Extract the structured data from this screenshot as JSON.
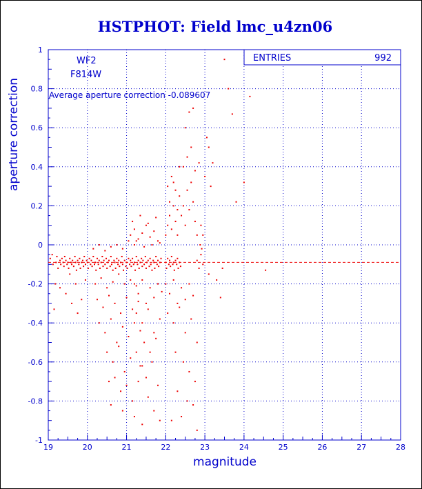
{
  "chart_data": {
    "type": "scatter",
    "title": "HSTPHOT: Field lmc_u4zn06",
    "xlabel": "magnitude",
    "ylabel": "aperture correction",
    "xlim": [
      19,
      28
    ],
    "ylim": [
      -1,
      1
    ],
    "x_ticks": [
      19,
      20,
      21,
      22,
      23,
      24,
      25,
      26,
      27,
      28
    ],
    "y_ticks": [
      -1,
      -0.8,
      -0.6,
      -0.4,
      -0.2,
      0,
      0.2,
      0.4,
      0.6,
      0.8,
      1
    ],
    "y_tick_labels": [
      "-1",
      "-0.8",
      "-0.6",
      "-0.4",
      "-0.2",
      "0",
      "0.2",
      "0.4",
      "0.6",
      "0.8",
      "1"
    ],
    "grid": true,
    "point_color": "#ee0000",
    "axis_color": "#0000cc",
    "chip": "WF2",
    "filter": "F814W",
    "average_label": "Average aperture correction",
    "average_value": -0.089607,
    "average_text": "Average aperture correction -0.089607",
    "entries_label": "ENTRIES",
    "entries_value": "992",
    "points": [
      [
        19.05,
        -0.07
      ],
      [
        19.1,
        -0.05
      ],
      [
        19.12,
        -0.1
      ],
      [
        19.15,
        -0.33
      ],
      [
        19.18,
        -0.2
      ],
      [
        19.2,
        -0.09
      ],
      [
        19.22,
        -0.06
      ],
      [
        19.25,
        -0.12
      ],
      [
        19.3,
        -0.08
      ],
      [
        19.32,
        -0.1
      ],
      [
        19.35,
        -0.07
      ],
      [
        19.38,
        -0.09
      ],
      [
        19.4,
        -0.11
      ],
      [
        19.42,
        -0.06
      ],
      [
        19.45,
        -0.08
      ],
      [
        19.48,
        -0.1
      ],
      [
        19.5,
        -0.09
      ],
      [
        19.52,
        -0.12
      ],
      [
        19.55,
        -0.07
      ],
      [
        19.58,
        -0.09
      ],
      [
        19.6,
        -0.1
      ],
      [
        19.62,
        -0.08
      ],
      [
        19.65,
        -0.11
      ],
      [
        19.68,
        -0.06
      ],
      [
        19.7,
        -0.09
      ],
      [
        19.72,
        -0.13
      ],
      [
        19.75,
        -0.08
      ],
      [
        19.78,
        -0.1
      ],
      [
        19.8,
        -0.07
      ],
      [
        19.82,
        -0.12
      ],
      [
        19.85,
        -0.09
      ],
      [
        19.88,
        -0.08
      ],
      [
        19.9,
        -0.11
      ],
      [
        19.92,
        -0.06
      ],
      [
        19.95,
        -0.1
      ],
      [
        19.98,
        -0.08
      ],
      [
        20.0,
        -0.09
      ],
      [
        20.02,
        -0.12
      ],
      [
        20.05,
        -0.07
      ],
      [
        20.08,
        -0.1
      ],
      [
        19.55,
        -0.15
      ],
      [
        19.7,
        -0.2
      ],
      [
        19.85,
        -0.28
      ],
      [
        19.95,
        -0.18
      ],
      [
        19.6,
        -0.3
      ],
      [
        19.75,
        -0.35
      ],
      [
        19.45,
        -0.25
      ],
      [
        19.3,
        -0.22
      ],
      [
        20.1,
        -0.08
      ],
      [
        20.12,
        -0.11
      ],
      [
        20.15,
        -0.06
      ],
      [
        20.18,
        -0.1
      ],
      [
        20.2,
        -0.09
      ],
      [
        20.22,
        -0.13
      ],
      [
        20.25,
        -0.07
      ],
      [
        20.28,
        -0.1
      ],
      [
        20.3,
        -0.08
      ],
      [
        20.32,
        -0.12
      ],
      [
        20.35,
        -0.09
      ],
      [
        20.38,
        -0.06
      ],
      [
        20.4,
        -0.11
      ],
      [
        20.42,
        -0.08
      ],
      [
        20.45,
        -0.1
      ],
      [
        20.48,
        -0.07
      ],
      [
        20.5,
        -0.12
      ],
      [
        20.52,
        -0.09
      ],
      [
        20.55,
        -0.08
      ],
      [
        20.58,
        -0.11
      ],
      [
        20.6,
        -0.06
      ],
      [
        20.62,
        -0.1
      ],
      [
        20.65,
        -0.13
      ],
      [
        20.68,
        -0.08
      ],
      [
        20.7,
        -0.09
      ],
      [
        20.72,
        -0.12
      ],
      [
        20.75,
        -0.07
      ],
      [
        20.78,
        -0.1
      ],
      [
        20.8,
        -0.08
      ],
      [
        20.82,
        -0.11
      ],
      [
        20.85,
        -0.09
      ],
      [
        20.88,
        -0.06
      ],
      [
        20.9,
        -0.1
      ],
      [
        20.92,
        -0.13
      ],
      [
        20.95,
        -0.08
      ],
      [
        20.98,
        -0.11
      ],
      [
        21.0,
        -0.09
      ],
      [
        21.02,
        -0.12
      ],
      [
        21.05,
        -0.07
      ],
      [
        21.08,
        -0.1
      ],
      [
        20.15,
        -0.02
      ],
      [
        20.3,
        0.0
      ],
      [
        20.45,
        -0.03
      ],
      [
        20.6,
        -0.01
      ],
      [
        20.75,
        0.0
      ],
      [
        20.9,
        -0.02
      ],
      [
        21.05,
        0.02
      ],
      [
        21.2,
        0.0
      ],
      [
        20.2,
        -0.2
      ],
      [
        20.35,
        -0.17
      ],
      [
        20.5,
        -0.22
      ],
      [
        20.65,
        -0.19
      ],
      [
        20.8,
        -0.15
      ],
      [
        20.95,
        -0.2
      ],
      [
        21.1,
        -0.18
      ],
      [
        21.25,
        -0.21
      ],
      [
        20.25,
        -0.28
      ],
      [
        20.4,
        -0.32
      ],
      [
        20.55,
        -0.26
      ],
      [
        20.7,
        -0.3
      ],
      [
        20.85,
        -0.35
      ],
      [
        21.0,
        -0.27
      ],
      [
        21.15,
        -0.33
      ],
      [
        21.3,
        -0.29
      ],
      [
        20.3,
        -0.4
      ],
      [
        20.45,
        -0.45
      ],
      [
        20.6,
        -0.38
      ],
      [
        20.75,
        -0.5
      ],
      [
        20.9,
        -0.42
      ],
      [
        21.05,
        -0.47
      ],
      [
        21.2,
        -0.4
      ],
      [
        21.35,
        -0.44
      ],
      [
        20.5,
        -0.55
      ],
      [
        20.65,
        -0.6
      ],
      [
        20.8,
        -0.52
      ],
      [
        20.95,
        -0.65
      ],
      [
        21.1,
        -0.58
      ],
      [
        21.25,
        -0.55
      ],
      [
        21.4,
        -0.62
      ],
      [
        20.55,
        -0.7
      ],
      [
        20.7,
        -0.68
      ],
      [
        20.85,
        -0.75
      ],
      [
        21.0,
        -0.72
      ],
      [
        21.15,
        -0.8
      ],
      [
        21.3,
        -0.7
      ],
      [
        20.9,
        -0.85
      ],
      [
        21.2,
        -0.88
      ],
      [
        20.6,
        -0.82
      ],
      [
        21.1,
        -0.08
      ],
      [
        21.12,
        -0.11
      ],
      [
        21.15,
        -0.07
      ],
      [
        21.18,
        -0.1
      ],
      [
        21.2,
        -0.09
      ],
      [
        21.22,
        -0.13
      ],
      [
        21.25,
        -0.06
      ],
      [
        21.28,
        -0.1
      ],
      [
        21.3,
        -0.08
      ],
      [
        21.32,
        -0.12
      ],
      [
        21.35,
        -0.09
      ],
      [
        21.38,
        -0.07
      ],
      [
        21.4,
        -0.11
      ],
      [
        21.42,
        -0.08
      ],
      [
        21.45,
        -0.1
      ],
      [
        21.48,
        -0.06
      ],
      [
        21.5,
        -0.12
      ],
      [
        21.52,
        -0.09
      ],
      [
        21.55,
        -0.08
      ],
      [
        21.58,
        -0.11
      ],
      [
        21.6,
        -0.07
      ],
      [
        21.62,
        -0.1
      ],
      [
        21.65,
        -0.13
      ],
      [
        21.68,
        -0.08
      ],
      [
        21.7,
        -0.09
      ],
      [
        21.72,
        -0.12
      ],
      [
        21.75,
        -0.06
      ],
      [
        21.78,
        -0.1
      ],
      [
        21.8,
        -0.08
      ],
      [
        21.82,
        -0.11
      ],
      [
        21.85,
        -0.09
      ],
      [
        21.88,
        -0.07
      ],
      [
        21.1,
        0.05
      ],
      [
        21.2,
        0.08
      ],
      [
        21.3,
        0.03
      ],
      [
        21.4,
        0.06
      ],
      [
        21.5,
        0.1
      ],
      [
        21.6,
        0.04
      ],
      [
        21.7,
        0.07
      ],
      [
        21.8,
        0.02
      ],
      [
        21.15,
        0.12
      ],
      [
        21.35,
        0.15
      ],
      [
        21.55,
        0.11
      ],
      [
        21.75,
        0.14
      ],
      [
        21.25,
        0.02
      ],
      [
        21.45,
        -0.01
      ],
      [
        21.65,
        0.0
      ],
      [
        21.85,
        0.01
      ],
      [
        21.2,
        -0.2
      ],
      [
        21.3,
        -0.25
      ],
      [
        21.4,
        -0.18
      ],
      [
        21.5,
        -0.3
      ],
      [
        21.6,
        -0.22
      ],
      [
        21.7,
        -0.27
      ],
      [
        21.8,
        -0.2
      ],
      [
        21.9,
        -0.24
      ],
      [
        21.25,
        -0.35
      ],
      [
        21.4,
        -0.4
      ],
      [
        21.55,
        -0.33
      ],
      [
        21.7,
        -0.45
      ],
      [
        21.85,
        -0.38
      ],
      [
        21.45,
        -0.5
      ],
      [
        21.6,
        -0.55
      ],
      [
        21.75,
        -0.48
      ],
      [
        21.35,
        -0.62
      ],
      [
        21.5,
        -0.68
      ],
      [
        21.65,
        -0.6
      ],
      [
        21.8,
        -0.72
      ],
      [
        21.55,
        -0.78
      ],
      [
        21.7,
        -0.85
      ],
      [
        21.4,
        -0.92
      ],
      [
        21.85,
        -0.9
      ],
      [
        22.0,
        -0.09
      ],
      [
        22.02,
        -0.12
      ],
      [
        22.05,
        -0.07
      ],
      [
        22.08,
        -0.1
      ],
      [
        22.1,
        -0.08
      ],
      [
        22.12,
        -0.11
      ],
      [
        22.15,
        -0.06
      ],
      [
        22.18,
        -0.1
      ],
      [
        22.2,
        -0.09
      ],
      [
        22.22,
        -0.13
      ],
      [
        22.25,
        -0.08
      ],
      [
        22.28,
        -0.1
      ],
      [
        22.3,
        -0.07
      ],
      [
        22.32,
        -0.12
      ],
      [
        22.35,
        -0.09
      ],
      [
        22.38,
        -0.11
      ],
      [
        22.0,
        0.05
      ],
      [
        22.05,
        0.1
      ],
      [
        22.1,
        0.15
      ],
      [
        22.15,
        0.08
      ],
      [
        22.2,
        0.2
      ],
      [
        22.25,
        0.12
      ],
      [
        22.3,
        0.18
      ],
      [
        22.35,
        0.25
      ],
      [
        22.05,
        0.3
      ],
      [
        22.15,
        0.35
      ],
      [
        22.25,
        0.28
      ],
      [
        22.35,
        0.4
      ],
      [
        22.1,
        0.22
      ],
      [
        22.2,
        0.32
      ],
      [
        22.3,
        0.05
      ],
      [
        22.4,
        0.15
      ],
      [
        22.45,
        0.2
      ],
      [
        22.5,
        0.1
      ],
      [
        22.55,
        0.28
      ],
      [
        22.6,
        0.18
      ],
      [
        22.65,
        0.32
      ],
      [
        22.7,
        0.22
      ],
      [
        22.75,
        0.12
      ],
      [
        22.8,
        0.05
      ],
      [
        22.45,
        0.4
      ],
      [
        22.55,
        0.45
      ],
      [
        22.65,
        0.5
      ],
      [
        22.75,
        0.38
      ],
      [
        22.85,
        0.42
      ],
      [
        22.5,
        0.6
      ],
      [
        22.6,
        0.68
      ],
      [
        22.7,
        0.7
      ],
      [
        22.0,
        -0.2
      ],
      [
        22.1,
        -0.25
      ],
      [
        22.2,
        -0.18
      ],
      [
        22.3,
        -0.3
      ],
      [
        22.4,
        -0.22
      ],
      [
        22.5,
        -0.28
      ],
      [
        22.6,
        -0.2
      ],
      [
        22.7,
        -0.26
      ],
      [
        22.05,
        -0.35
      ],
      [
        22.2,
        -0.4
      ],
      [
        22.35,
        -0.32
      ],
      [
        22.5,
        -0.45
      ],
      [
        22.65,
        -0.38
      ],
      [
        22.8,
        -0.5
      ],
      [
        22.25,
        -0.55
      ],
      [
        22.45,
        -0.6
      ],
      [
        22.6,
        -0.65
      ],
      [
        22.75,
        -0.7
      ],
      [
        22.3,
        -0.75
      ],
      [
        22.55,
        -0.8
      ],
      [
        22.7,
        -0.82
      ],
      [
        22.4,
        -0.88
      ],
      [
        22.8,
        -0.95
      ],
      [
        22.15,
        -0.9
      ],
      [
        22.8,
        -0.08
      ],
      [
        22.85,
        -0.12
      ],
      [
        22.9,
        -0.05
      ],
      [
        22.95,
        -0.1
      ],
      [
        22.88,
        0.0
      ],
      [
        22.92,
        -0.02
      ],
      [
        22.95,
        0.05
      ],
      [
        22.9,
        0.1
      ],
      [
        23.0,
        0.35
      ],
      [
        23.1,
        0.5
      ],
      [
        23.15,
        0.3
      ],
      [
        23.2,
        0.42
      ],
      [
        23.05,
        0.55
      ],
      [
        23.5,
        0.95
      ],
      [
        23.7,
        0.67
      ],
      [
        24.0,
        0.32
      ],
      [
        23.8,
        0.22
      ],
      [
        23.6,
        0.8
      ],
      [
        24.15,
        0.76
      ],
      [
        23.3,
        -0.18
      ],
      [
        23.4,
        -0.27
      ],
      [
        23.1,
        -0.15
      ],
      [
        23.45,
        -0.12
      ],
      [
        24.55,
        -0.13
      ]
    ]
  }
}
